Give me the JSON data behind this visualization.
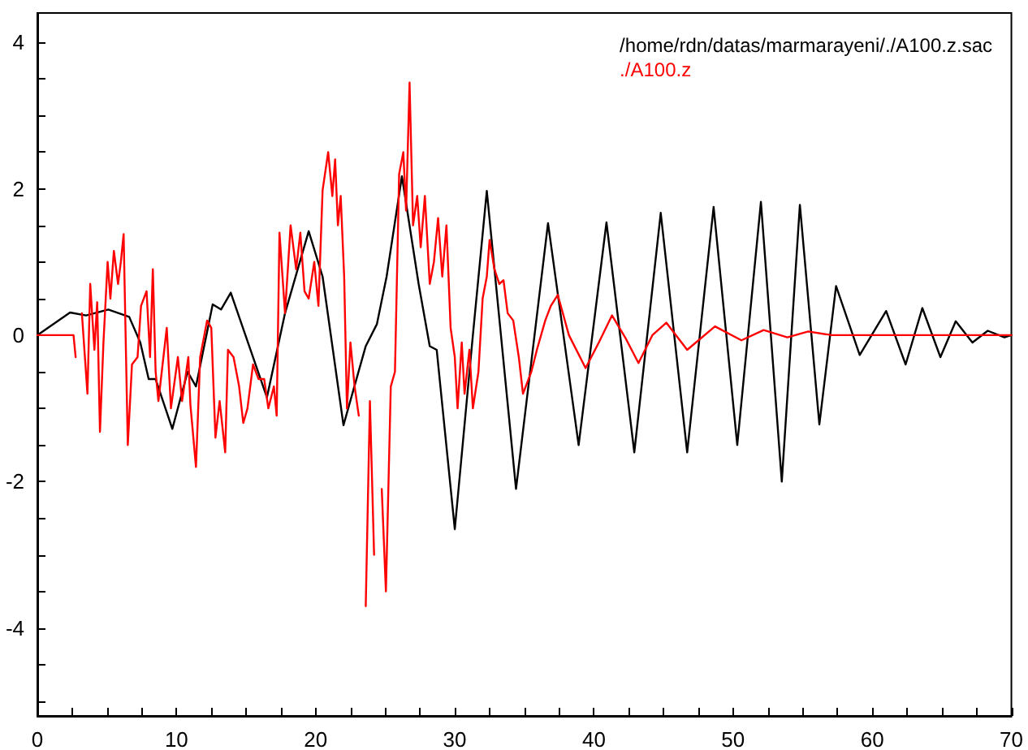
{
  "chart_data": {
    "type": "line",
    "xlim": [
      0,
      70
    ],
    "xticks": [
      0,
      {
        "value": 2.5,
        "label": null
      },
      {
        "value": 5,
        "label": null
      },
      {
        "value": 7.5,
        "label": null
      },
      10,
      {
        "value": 12.5,
        "label": null
      },
      {
        "value": 15,
        "label": null
      },
      {
        "value": 17.5,
        "label": null
      },
      20,
      {
        "value": 22.5,
        "label": null
      },
      {
        "value": 25,
        "label": null
      },
      {
        "value": 27.5,
        "label": null
      },
      30,
      {
        "value": 32.5,
        "label": null
      },
      {
        "value": 35,
        "label": null
      },
      {
        "value": 37.5,
        "label": null
      },
      40,
      {
        "value": 42.5,
        "label": null
      },
      {
        "value": 45,
        "label": null
      },
      {
        "value": 47.5,
        "label": null
      },
      50,
      {
        "value": 52.5,
        "label": null
      },
      {
        "value": 55,
        "label": null
      },
      {
        "value": 57.5,
        "label": null
      },
      60,
      {
        "value": 62.5,
        "label": null
      },
      {
        "value": 65,
        "label": null
      },
      {
        "value": 67.5,
        "label": null
      },
      70
    ],
    "ylim": [
      -5.2,
      4.4
    ],
    "yticks": [
      {
        "value": -5,
        "label": null
      },
      {
        "value": -4.5,
        "label": null
      },
      -4,
      {
        "value": -3.5,
        "label": null
      },
      {
        "value": -3,
        "label": null
      },
      {
        "value": -2.5,
        "label": null
      },
      -2,
      {
        "value": -1.5,
        "label": null
      },
      {
        "value": -1,
        "label": null
      },
      {
        "value": -0.5,
        "label": null
      },
      0,
      {
        "value": 0.5,
        "label": null
      },
      {
        "value": 1,
        "label": null
      },
      {
        "value": 1.5,
        "label": null
      },
      2,
      {
        "value": 2.5,
        "label": null
      },
      {
        "value": 3,
        "label": null
      },
      {
        "value": 3.5,
        "label": null
      },
      4
    ],
    "grid": false,
    "marker": "none",
    "line_style": "solid",
    "legend": "top right",
    "series": [
      {
        "name": "/home/rdn/datas/marmarayeni/./A100.z.sac",
        "color": "#000000",
        "x": [
          0,
          2.35,
          3.5,
          5.1,
          6.6,
          7.4,
          8,
          8.5,
          9.7,
          10.8,
          11.4,
          12.6,
          13.2,
          13.9,
          16.5,
          17.8,
          19.5,
          20.5,
          22.0,
          23.6,
          24.4,
          25.1,
          26.2,
          27.4,
          28.2,
          28.7,
          30,
          31.3,
          32.3,
          34.4,
          36.7,
          38.9,
          40.9,
          42.9,
          44.8,
          46.7,
          48.6,
          50.3,
          52.0,
          53.5,
          54.8,
          56.2,
          57.4,
          59.1,
          61.0,
          62.4,
          63.6,
          64.9,
          66.0,
          67.2,
          68.3,
          69.5,
          70
        ],
        "values": [
          0,
          0.31,
          0.27,
          0.35,
          0.25,
          -0.1,
          -0.6,
          -0.6,
          -1.28,
          -0.5,
          -0.7,
          0.42,
          0.35,
          0.58,
          -0.85,
          0.3,
          1.42,
          0.8,
          -1.23,
          -0.15,
          0.15,
          0.8,
          2.17,
          0.7,
          -0.15,
          -0.2,
          -2.65,
          0,
          1.97,
          -2.1,
          1.53,
          -1.5,
          1.54,
          -1.6,
          1.67,
          -1.6,
          1.75,
          -1.5,
          1.82,
          -2.0,
          1.78,
          -1.22,
          0.67,
          -0.27,
          0.33,
          -0.4,
          0.37,
          -0.3,
          0.19,
          -0.1,
          0.06,
          -0.03,
          0
        ]
      },
      {
        "name": "./A100.z",
        "color": "#ff0000",
        "x": [
          0,
          2.6,
          2.75,
          2.95,
          3.2,
          3.6,
          3.8,
          4.1,
          4.3,
          4.5,
          4.75,
          5.05,
          5.25,
          5.5,
          5.8,
          6.0,
          6.2,
          6.5,
          6.8,
          7.2,
          7.45,
          7.85,
          8.1,
          8.3,
          8.5,
          8.7,
          9.0,
          9.3,
          9.6,
          10.1,
          10.4,
          10.85,
          11.0,
          11.4,
          11.7,
          12.2,
          12.5,
          12.8,
          13.1,
          13.5,
          13.7,
          14.1,
          14.5,
          14.8,
          15.1,
          15.5,
          15.9,
          16.3,
          16.6,
          17.0,
          17.2,
          17.4,
          17.8,
          18.2,
          18.6,
          18.9,
          19.2,
          19.5,
          19.9,
          20.2,
          20.5,
          20.9,
          21.2,
          21.4,
          21.6,
          21.8,
          22.05,
          22.25,
          22.5,
          22.8,
          23.1,
          23.3,
          23.6,
          23.9,
          24.2,
          24.5,
          24.75,
          25.05,
          25.4,
          25.7,
          26.0,
          26.3,
          26.5,
          26.75,
          27.0,
          27.3,
          27.55,
          27.85,
          28.2,
          28.5,
          28.8,
          29.1,
          29.4,
          29.7,
          30.0,
          30.2,
          30.5,
          30.7,
          31.05,
          31.3,
          31.7,
          32.0,
          32.3,
          32.5,
          32.85,
          33.2,
          33.5,
          33.8,
          34.2,
          34.6,
          34.9,
          35.5,
          35.9,
          36.5,
          36.9,
          37.4,
          38.2,
          39.4,
          40.35,
          41.3,
          42.3,
          43.2,
          44.2,
          45.2,
          46.7,
          48.7,
          50.6,
          52.2,
          53.9,
          55.4,
          57.1,
          70
        ],
        "values": [
          0,
          0,
          -0.3,
          null,
          0.3,
          -0.8,
          0.7,
          -0.2,
          0.45,
          -1.32,
          -0.1,
          1.0,
          0.5,
          1.15,
          0.7,
          1.0,
          1.38,
          -1.5,
          -0.4,
          -0.3,
          0.4,
          0.6,
          -0.3,
          0.9,
          -0.5,
          -0.9,
          -0.4,
          0.1,
          -1.0,
          -0.3,
          -0.9,
          -0.3,
          -0.95,
          -1.8,
          -0.3,
          0.2,
          0.1,
          -1.4,
          -0.9,
          -1.6,
          -0.2,
          -0.3,
          -0.7,
          -1.2,
          -1.0,
          -0.4,
          -0.6,
          -0.6,
          -1.0,
          -0.7,
          -1.1,
          1.4,
          0.3,
          1.5,
          0.9,
          1.4,
          0.6,
          0.5,
          1.0,
          0.4,
          1.98,
          2.5,
          1.9,
          2.4,
          1.5,
          1.9,
          0.8,
          -1.0,
          -0.1,
          -0.7,
          -1.1,
          null,
          -3.7,
          -0.9,
          -3.0,
          null,
          -2.1,
          -3.5,
          -0.7,
          -0.5,
          2.2,
          2.5,
          1.7,
          3.45,
          1.5,
          1.9,
          1.2,
          1.9,
          0.7,
          1.0,
          1.6,
          0.8,
          1.5,
          0.1,
          -0.3,
          -1.0,
          -0.1,
          -0.8,
          -0.2,
          -1.0,
          -0.5,
          0.5,
          0.8,
          1.3,
          0.9,
          0.7,
          0.75,
          0.3,
          0.2,
          -0.3,
          -0.8,
          -0.5,
          -0.2,
          0.2,
          0.4,
          0.55,
          0.0,
          -0.45,
          -0.1,
          0.27,
          -0.05,
          -0.38,
          0.0,
          0.17,
          -0.2,
          0.12,
          -0.07,
          0.07,
          -0.03,
          0.05,
          0.0,
          0
        ]
      }
    ]
  }
}
